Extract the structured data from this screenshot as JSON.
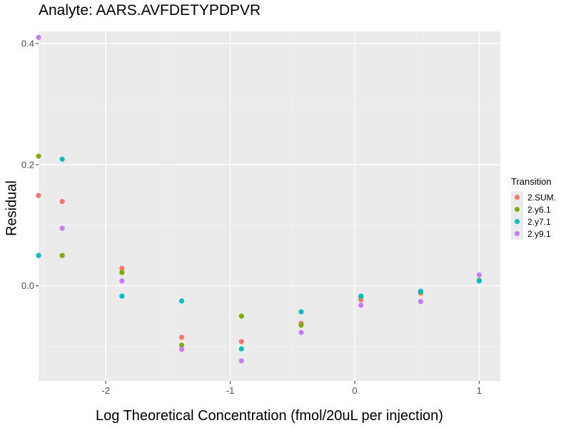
{
  "chart_data": {
    "type": "scatter",
    "title": "Analyte: AARS.AVFDETYPDPVR",
    "xlabel": "Log Theoretical Concentration (fmol/20uL per injection)",
    "ylabel": "Residual",
    "xlim": [
      -2.54,
      1.17
    ],
    "ylim": [
      -0.157,
      0.42
    ],
    "x_ticks": [
      -2,
      -1,
      0,
      1
    ],
    "x_tick_labels": [
      "-2",
      "-1",
      "0",
      "1"
    ],
    "y_ticks": [
      0.0,
      0.2,
      0.4
    ],
    "y_tick_labels": [
      "0.0",
      "0.2",
      "0.4"
    ],
    "grid": true,
    "legend_title": "Transition",
    "legend_position": "right",
    "series": [
      {
        "name": "2.SUM.",
        "color": "#F8766D",
        "x": [
          -2.54,
          -2.35,
          -1.87,
          -1.39,
          -0.91,
          -0.43,
          0.05,
          0.53,
          1.0
        ],
        "y": [
          0.149,
          0.139,
          0.029,
          -0.085,
          -0.092,
          -0.062,
          -0.023,
          -0.012,
          0.009
        ]
      },
      {
        "name": "2.y6.1",
        "color": "#7CAE00",
        "x": [
          -2.54,
          -2.35,
          -1.87,
          -1.39,
          -0.91,
          -0.43,
          0.05,
          0.53,
          1.0
        ],
        "y": [
          0.214,
          0.05,
          0.022,
          -0.098,
          -0.05,
          -0.065,
          -0.018,
          -0.01,
          0.009
        ]
      },
      {
        "name": "2.y7.1",
        "color": "#00BFC4",
        "x": [
          -2.54,
          -2.35,
          -1.87,
          -1.39,
          -0.91,
          -0.43,
          0.05,
          0.53,
          1.0
        ],
        "y": [
          0.05,
          0.209,
          -0.017,
          -0.025,
          -0.104,
          -0.043,
          -0.017,
          -0.009,
          0.008
        ]
      },
      {
        "name": "2.y9.1",
        "color": "#C77CFF",
        "x": [
          -2.54,
          -2.35,
          -1.87,
          -1.39,
          -0.91,
          -0.43,
          0.05,
          0.53,
          1.0
        ],
        "y": [
          0.41,
          0.095,
          0.008,
          -0.105,
          -0.124,
          -0.077,
          -0.032,
          -0.026,
          0.018
        ]
      }
    ]
  }
}
